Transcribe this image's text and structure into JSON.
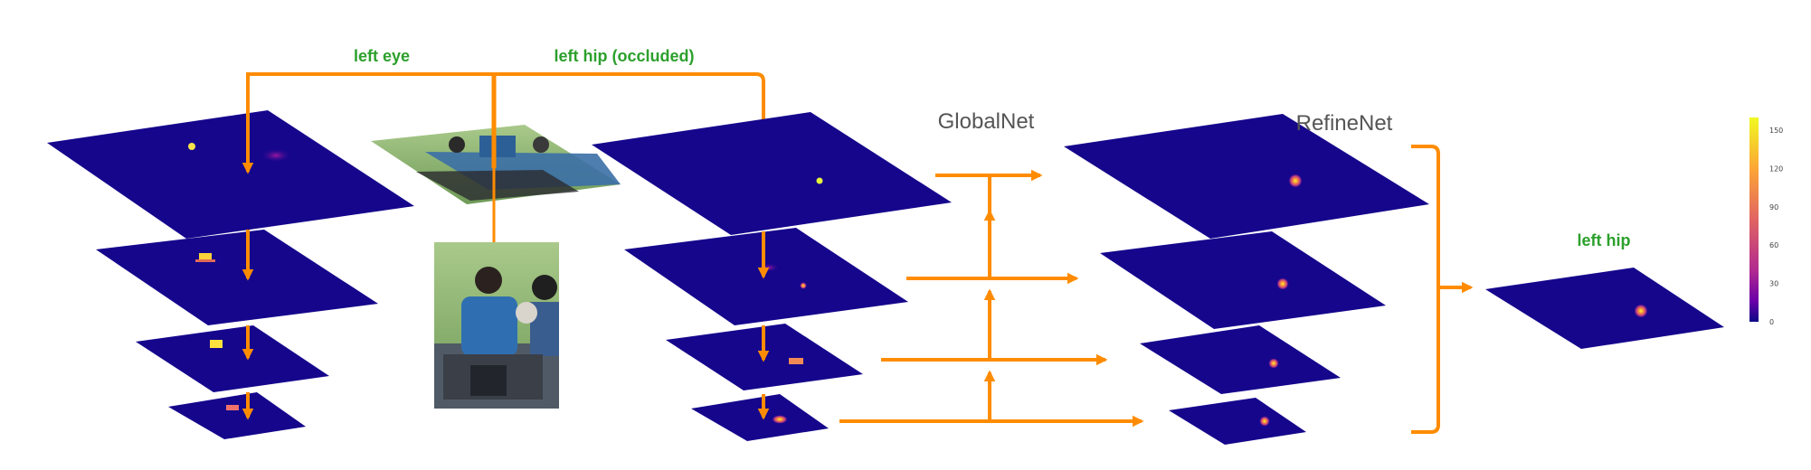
{
  "labels": {
    "left_eye": "left eye",
    "left_hip_occluded": "left hip (occluded)",
    "globalnet": "GlobalNet",
    "refinenet": "RefineNet",
    "left_hip": "left hip"
  },
  "colorbar": {
    "ticks": [
      "150",
      "120",
      "90",
      "60",
      "30",
      "0"
    ]
  },
  "colors": {
    "arrow": "#ff8c00",
    "heatmap_bg": "#15068c",
    "label_green": "#2ca02c",
    "label_gray": "#555555"
  }
}
